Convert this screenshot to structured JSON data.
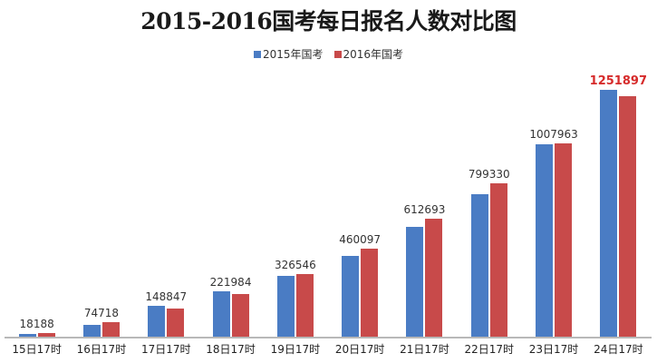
{
  "chart_data": {
    "type": "bar",
    "title": "2015-2016国考每日报名人数对比图",
    "xlabel": "",
    "ylabel": "",
    "grid": false,
    "legend_position": "top",
    "categories": [
      "15日17时",
      "16日17时",
      "17日17时",
      "18日17时",
      "19日17时",
      "20日17时",
      "21日17时",
      "22日17时",
      "23日17时",
      "24日17时"
    ],
    "series": [
      {
        "name": "2015年国考",
        "color": "#4a7cc4",
        "values": [
          14000,
          60000,
          160000,
          236000,
          318000,
          419000,
          570000,
          740000,
          1000000,
          1285000
        ]
      },
      {
        "name": "2016年国考",
        "color": "#c84a4a",
        "values": [
          18188,
          74718,
          148847,
          221984,
          326546,
          460097,
          612693,
          799330,
          1007963,
          1251897
        ]
      }
    ],
    "data_labels": [
      "18188",
      "74718",
      "148847",
      "221984",
      "326546",
      "460097",
      "612693",
      "799330",
      "1007963",
      "1251897"
    ],
    "highlight_label_index": 9,
    "highlight_color": "#d62b2b",
    "ylim": [
      0,
      1300000
    ]
  }
}
